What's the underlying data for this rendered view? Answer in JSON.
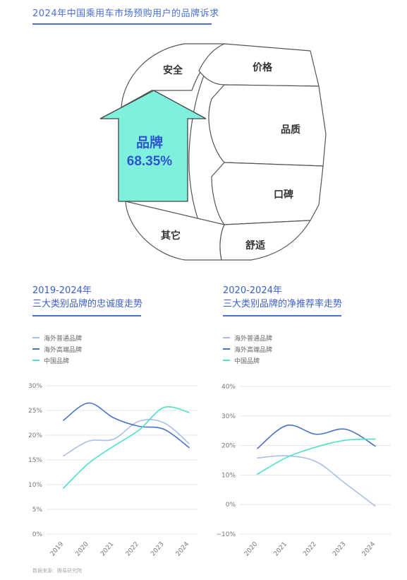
{
  "title": "2024年中国乘用车市场预购用户的品牌诉求",
  "ring": {
    "segments": [
      {
        "label": "安全"
      },
      {
        "label": "价格"
      },
      {
        "label": "品质"
      },
      {
        "label": "口碑"
      },
      {
        "label": "舒适"
      },
      {
        "label": "其它"
      }
    ],
    "highlight_label": "品牌",
    "highlight_value": "68.35%",
    "highlight_color": "#7ef0dc"
  },
  "colors": {
    "accent": "#4a6fd6",
    "overseas_regular": "#a9bfe8",
    "overseas_premium": "#4a72c6",
    "china": "#4fe0cc"
  },
  "chart_data": [
    {
      "type": "line",
      "title": "2019-2024年\n三大类别品牌的忠诚度走势",
      "title_line1": "2019-2024年",
      "title_line2": "三大类别品牌的忠诚度走势",
      "x": [
        "2019",
        "2020",
        "2021",
        "2022",
        "2023",
        "2024"
      ],
      "yticks": [
        "30%",
        "25%",
        "20%",
        "15%",
        "10%",
        "5%",
        "0%"
      ],
      "ylim": [
        0,
        30
      ],
      "grid": true,
      "legend_position": "top-left",
      "series": [
        {
          "name": "海外普通品牌",
          "values": [
            15.8,
            18.8,
            19.2,
            22.8,
            22.5,
            18.3
          ]
        },
        {
          "name": "海外高端品牌",
          "values": [
            23.0,
            26.5,
            23.5,
            21.8,
            21.2,
            17.5
          ]
        },
        {
          "name": "中国品牌",
          "values": [
            9.3,
            14.3,
            17.8,
            21.0,
            25.6,
            24.6
          ]
        }
      ]
    },
    {
      "type": "line",
      "title": "2020-2024年\n三大类别品牌的净推荐率走势",
      "title_line1": "2020-2024年",
      "title_line2": "三大类别品牌的净推荐率走势",
      "x": [
        "2020",
        "2021",
        "2022",
        "2023",
        "2024"
      ],
      "yticks": [
        "40%",
        "30%",
        "20%",
        "10%",
        "0%",
        "−10%"
      ],
      "ylim": [
        -10,
        40
      ],
      "grid": true,
      "legend_position": "top-left",
      "series": [
        {
          "name": "海外普通品牌",
          "values": [
            15.8,
            16.5,
            14.5,
            7.0,
            -0.5
          ]
        },
        {
          "name": "海外高端品牌",
          "values": [
            19.0,
            26.8,
            23.8,
            25.5,
            19.8
          ]
        },
        {
          "name": "中国品牌",
          "values": [
            10.3,
            16.0,
            19.5,
            21.8,
            22.2
          ]
        }
      ]
    }
  ],
  "source": "数据来源：腾易研究院"
}
